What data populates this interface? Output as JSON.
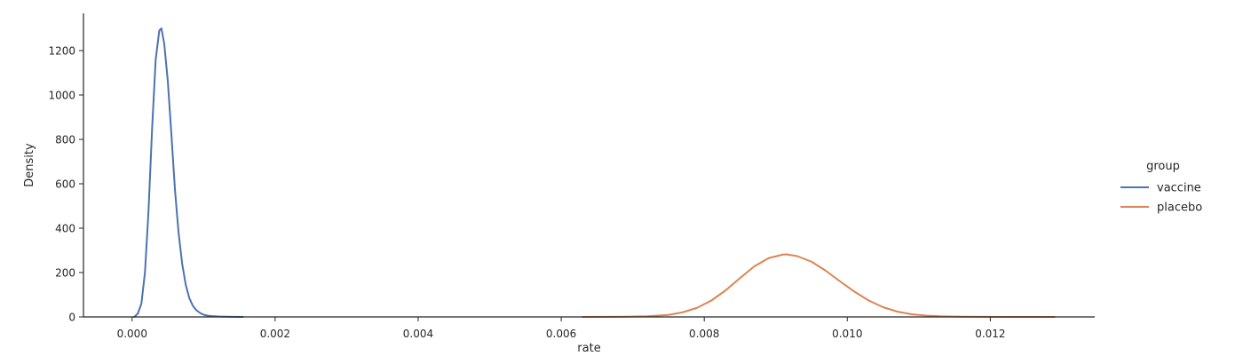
{
  "chart_data": {
    "type": "line",
    "title": "",
    "xlabel": "rate",
    "ylabel": "Density",
    "xlim": [
      -0.00068,
      0.01346
    ],
    "ylim": [
      0,
      1368
    ],
    "x_ticks": [
      0.0,
      0.002,
      0.004,
      0.006,
      0.008,
      0.01,
      0.012
    ],
    "x_tick_labels": [
      "0.000",
      "0.002",
      "0.004",
      "0.006",
      "0.008",
      "0.010",
      "0.012"
    ],
    "y_ticks": [
      0,
      200,
      400,
      600,
      800,
      1000,
      1200
    ],
    "y_tick_labels": [
      "0",
      "200",
      "400",
      "600",
      "800",
      "1000",
      "1200"
    ],
    "grid": false,
    "legend": {
      "title": "group",
      "placement": "outside-right"
    },
    "series": [
      {
        "name": "vaccine",
        "color": "#4c72b0",
        "x": [
          3e-05,
          8e-05,
          0.00013,
          0.00018,
          0.00023,
          0.00028,
          0.00033,
          0.00038,
          0.00041,
          0.00045,
          0.0005,
          0.00055,
          0.0006,
          0.00065,
          0.0007,
          0.00075,
          0.0008,
          0.00085,
          0.0009,
          0.00095,
          0.001,
          0.00105,
          0.0011,
          0.0012,
          0.0013,
          0.0014,
          0.00155
        ],
        "y": [
          0,
          15,
          60,
          200,
          480,
          850,
          1160,
          1290,
          1300,
          1230,
          1060,
          820,
          570,
          380,
          240,
          145,
          85,
          50,
          30,
          18,
          10,
          6,
          4,
          2,
          1,
          0.5,
          0
        ]
      },
      {
        "name": "placebo",
        "color": "#dd8452",
        "x": [
          0.0063,
          0.0066,
          0.0069,
          0.0072,
          0.0075,
          0.0077,
          0.0079,
          0.0081,
          0.0083,
          0.0085,
          0.0087,
          0.0089,
          0.0091,
          0.00915,
          0.0093,
          0.0095,
          0.0097,
          0.0099,
          0.0101,
          0.0103,
          0.0105,
          0.0107,
          0.0109,
          0.0111,
          0.0113,
          0.0116,
          0.0119,
          0.0122,
          0.0125,
          0.0129
        ],
        "y": [
          0,
          0.5,
          1,
          3,
          9,
          21,
          41,
          74,
          120,
          175,
          228,
          265,
          281,
          282,
          274,
          249,
          208,
          160,
          114,
          74,
          44,
          24,
          12,
          6,
          3,
          1,
          0.5,
          0.2,
          0.1,
          0
        ]
      }
    ]
  }
}
